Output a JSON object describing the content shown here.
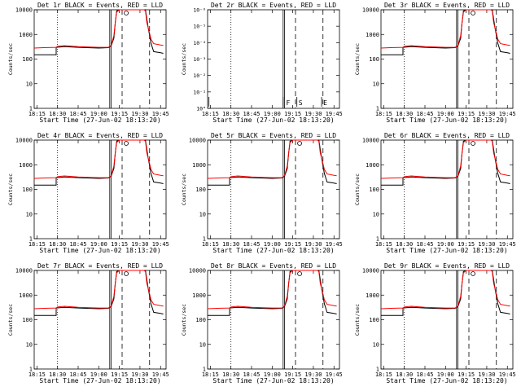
{
  "chart_data": {
    "type": "line",
    "panels": [
      {
        "title": "Det 1r BLACK = Events, RED = LLD",
        "ylabel": "Counts/sec",
        "xlabel": "Start Time (27-Jun-02 18:13:20)",
        "yscale": "log",
        "ylim": [
          1,
          10000
        ],
        "yticks": [
          "1",
          "10",
          "100",
          "1000",
          "10000"
        ],
        "xticks": [
          "18:15",
          "18:30",
          "18:45",
          "19:00",
          "19:15",
          "19:30",
          "19:45"
        ],
        "has_data": true,
        "markers": []
      },
      {
        "title": "Det 2r BLACK = Events, RED = LLD",
        "ylabel": "Counts/sec",
        "xlabel": "Start Time (27-Jun-02 18:13:20)",
        "yscale": "log",
        "ylim": [
          1,
          1e-06
        ],
        "yticks": [
          "10°",
          "10⁻¹",
          "10⁻²",
          "10⁻³",
          "10⁻⁴",
          "10⁻⁵",
          "10⁻⁶"
        ],
        "xticks": [
          "18:15",
          "18:30",
          "18:45",
          "19:00",
          "19:15",
          "19:30",
          "19:45"
        ],
        "has_data": false,
        "markers": [
          "F",
          "S",
          "E"
        ]
      },
      {
        "title": "Det 3r BLACK = Events, RED = LLD",
        "ylabel": "Counts/sec",
        "xlabel": "Start Time (27-Jun-02 18:13:20)",
        "yscale": "log",
        "ylim": [
          1,
          10000
        ],
        "yticks": [
          "1",
          "10",
          "100",
          "1000",
          "10000"
        ],
        "xticks": [
          "18:15",
          "18:30",
          "18:45",
          "19:00",
          "19:15",
          "19:30",
          "19:45"
        ],
        "has_data": true,
        "markers": []
      },
      {
        "title": "Det 4r BLACK = Events, RED = LLD",
        "ylabel": "Counts/sec",
        "xlabel": "Start Time (27-Jun-02 18:13:20)",
        "yscale": "log",
        "ylim": [
          1,
          10000
        ],
        "yticks": [
          "1",
          "10",
          "100",
          "1000",
          "10000"
        ],
        "xticks": [
          "18:15",
          "18:30",
          "18:45",
          "19:00",
          "19:15",
          "19:30",
          "19:45"
        ],
        "has_data": true,
        "markers": []
      },
      {
        "title": "Det 5r BLACK = Events, RED = LLD",
        "ylabel": "Counts/sec",
        "xlabel": "Start Time (27-Jun-02 18:13:20)",
        "yscale": "log",
        "ylim": [
          1,
          10000
        ],
        "yticks": [
          "1",
          "10",
          "100",
          "1000",
          "10000"
        ],
        "xticks": [
          "18:15",
          "18:30",
          "18:45",
          "19:00",
          "19:15",
          "19:30",
          "19:45"
        ],
        "has_data": true,
        "markers": []
      },
      {
        "title": "Det 6r BLACK = Events, RED = LLD",
        "ylabel": "Counts/sec",
        "xlabel": "Start Time (27-Jun-02 18:13:20)",
        "yscale": "log",
        "ylim": [
          1,
          10000
        ],
        "yticks": [
          "1",
          "10",
          "100",
          "1000",
          "10000"
        ],
        "xticks": [
          "18:15",
          "18:30",
          "18:45",
          "19:00",
          "19:15",
          "19:30",
          "19:45"
        ],
        "has_data": true,
        "markers": []
      },
      {
        "title": "Det 7r BLACK = Events, RED = LLD",
        "ylabel": "Counts/sec",
        "xlabel": "Start Time (27-Jun-02 18:13:20)",
        "yscale": "log",
        "ylim": [
          1,
          10000
        ],
        "yticks": [
          "1",
          "10",
          "100",
          "1000",
          "10000"
        ],
        "xticks": [
          "18:15",
          "18:30",
          "18:45",
          "19:00",
          "19:15",
          "19:30",
          "19:45"
        ],
        "has_data": true,
        "markers": []
      },
      {
        "title": "Det 8r BLACK = Events, RED = LLD",
        "ylabel": "Counts/sec",
        "xlabel": "Start Time (27-Jun-02 18:13:20)",
        "yscale": "log",
        "ylim": [
          1,
          10000
        ],
        "yticks": [
          "1",
          "10",
          "100",
          "1000",
          "10000"
        ],
        "xticks": [
          "18:15",
          "18:30",
          "18:45",
          "19:00",
          "19:15",
          "19:30",
          "19:45"
        ],
        "has_data": true,
        "markers": []
      },
      {
        "title": "Det 9r BLACK = Events, RED = LLD",
        "ylabel": "Counts/sec",
        "xlabel": "Start Time (27-Jun-02 18:13:20)",
        "yscale": "log",
        "ylim": [
          1,
          10000
        ],
        "yticks": [
          "1",
          "10",
          "100",
          "1000",
          "10000"
        ],
        "xticks": [
          "18:15",
          "18:30",
          "18:45",
          "19:00",
          "19:15",
          "19:30",
          "19:45"
        ],
        "has_data": true,
        "markers": []
      }
    ],
    "vertical_lines": [
      {
        "time": "18:30",
        "style": "dotted"
      },
      {
        "time": "19:08",
        "style": "solid"
      },
      {
        "time": "19:09",
        "style": "solid"
      },
      {
        "time": "19:17",
        "style": "dashed"
      },
      {
        "time": "19:37",
        "style": "dashed"
      }
    ],
    "series": [
      {
        "name": "Events",
        "color": "#000000",
        "points": [
          [
            "18:13",
            150
          ],
          [
            "18:29",
            150
          ],
          [
            "18:29",
            300
          ],
          [
            "18:35",
            320
          ],
          [
            "18:45",
            300
          ],
          [
            "19:00",
            280
          ],
          [
            "19:07",
            290
          ],
          [
            "19:09",
            340
          ],
          [
            "19:11",
            700
          ],
          [
            "19:12",
            3000
          ],
          [
            "19:13",
            9000
          ],
          [
            "19:15",
            10000
          ],
          [
            "19:33",
            10000
          ],
          [
            "19:34",
            10000
          ],
          [
            "19:36",
            1800
          ],
          [
            "19:37",
            900
          ],
          [
            "19:38",
            450
          ],
          [
            "19:40",
            200
          ],
          [
            "19:45",
            180
          ],
          [
            "19:47",
            170
          ]
        ]
      },
      {
        "name": "LLD",
        "color": "#ff0000",
        "points": [
          [
            "18:13",
            280
          ],
          [
            "18:20",
            290
          ],
          [
            "18:29",
            300
          ],
          [
            "18:30",
            330
          ],
          [
            "18:35",
            350
          ],
          [
            "18:45",
            320
          ],
          [
            "19:00",
            300
          ],
          [
            "19:07",
            300
          ],
          [
            "19:09",
            360
          ],
          [
            "19:11",
            900
          ],
          [
            "19:12",
            3000
          ],
          [
            "19:13",
            8000
          ],
          [
            "19:15",
            10000
          ],
          [
            "19:33",
            10000
          ],
          [
            "19:34",
            9000
          ],
          [
            "19:35",
            3000
          ],
          [
            "19:37",
            1100
          ],
          [
            "19:38",
            650
          ],
          [
            "19:40",
            420
          ],
          [
            "19:45",
            370
          ],
          [
            "19:47",
            360
          ]
        ]
      }
    ]
  }
}
